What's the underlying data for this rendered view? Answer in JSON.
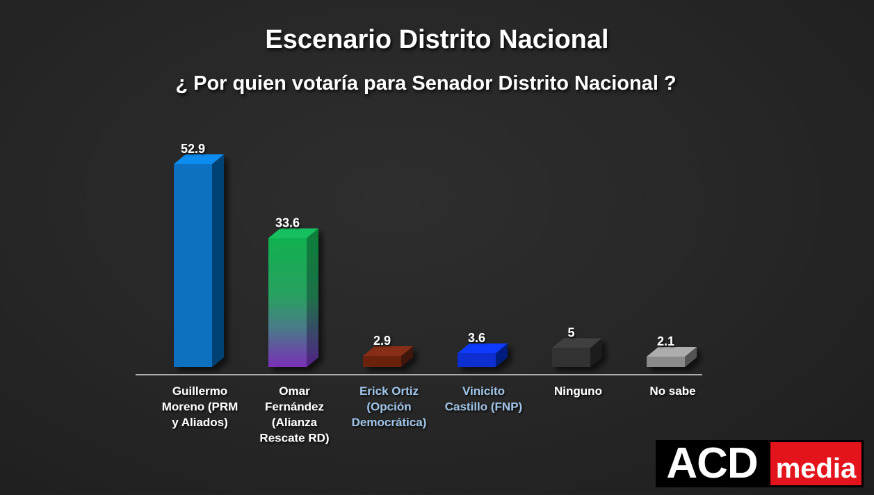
{
  "header": {
    "title": "Escenario Distrito Nacional",
    "subtitle": "¿ Por quien votaría para Senador Distrito Nacional ?"
  },
  "logo": {
    "brand": "ACD",
    "media": "media"
  },
  "chart_data": {
    "type": "bar",
    "title": "Escenario Distrito Nacional",
    "subtitle": "¿ Por quien votaría para Senador Distrito Nacional ?",
    "xlabel": "",
    "ylabel": "",
    "ylim": [
      0,
      55
    ],
    "grid": false,
    "legend": "none",
    "categories": [
      [
        "Guillermo",
        "Moreno (PRM",
        "y Aliados)"
      ],
      [
        "Omar",
        "Fernández",
        "(Alianza",
        "Rescate RD)"
      ],
      [
        "Erick Ortiz",
        "(Opción",
        "Democrática)"
      ],
      [
        "Vinicito",
        "Castillo (FNP)"
      ],
      [
        "Ninguno"
      ],
      [
        "No sabe"
      ]
    ],
    "value_labels": [
      "52.9",
      "33.6",
      "2.9",
      "3.6",
      "5",
      "2.1"
    ],
    "values": [
      52.9,
      33.6,
      2.9,
      3.6,
      5,
      2.1
    ],
    "bar_colors": [
      "#0a70c0",
      "gradient-green-purple",
      "#6b2410",
      "#0a2fd0",
      "#323232",
      "#8a8a8a"
    ],
    "label_colors": [
      "#ffffff",
      "#ffffff",
      "#9fc3e6",
      "#9fc3e6",
      "#ffffff",
      "#ffffff"
    ]
  }
}
